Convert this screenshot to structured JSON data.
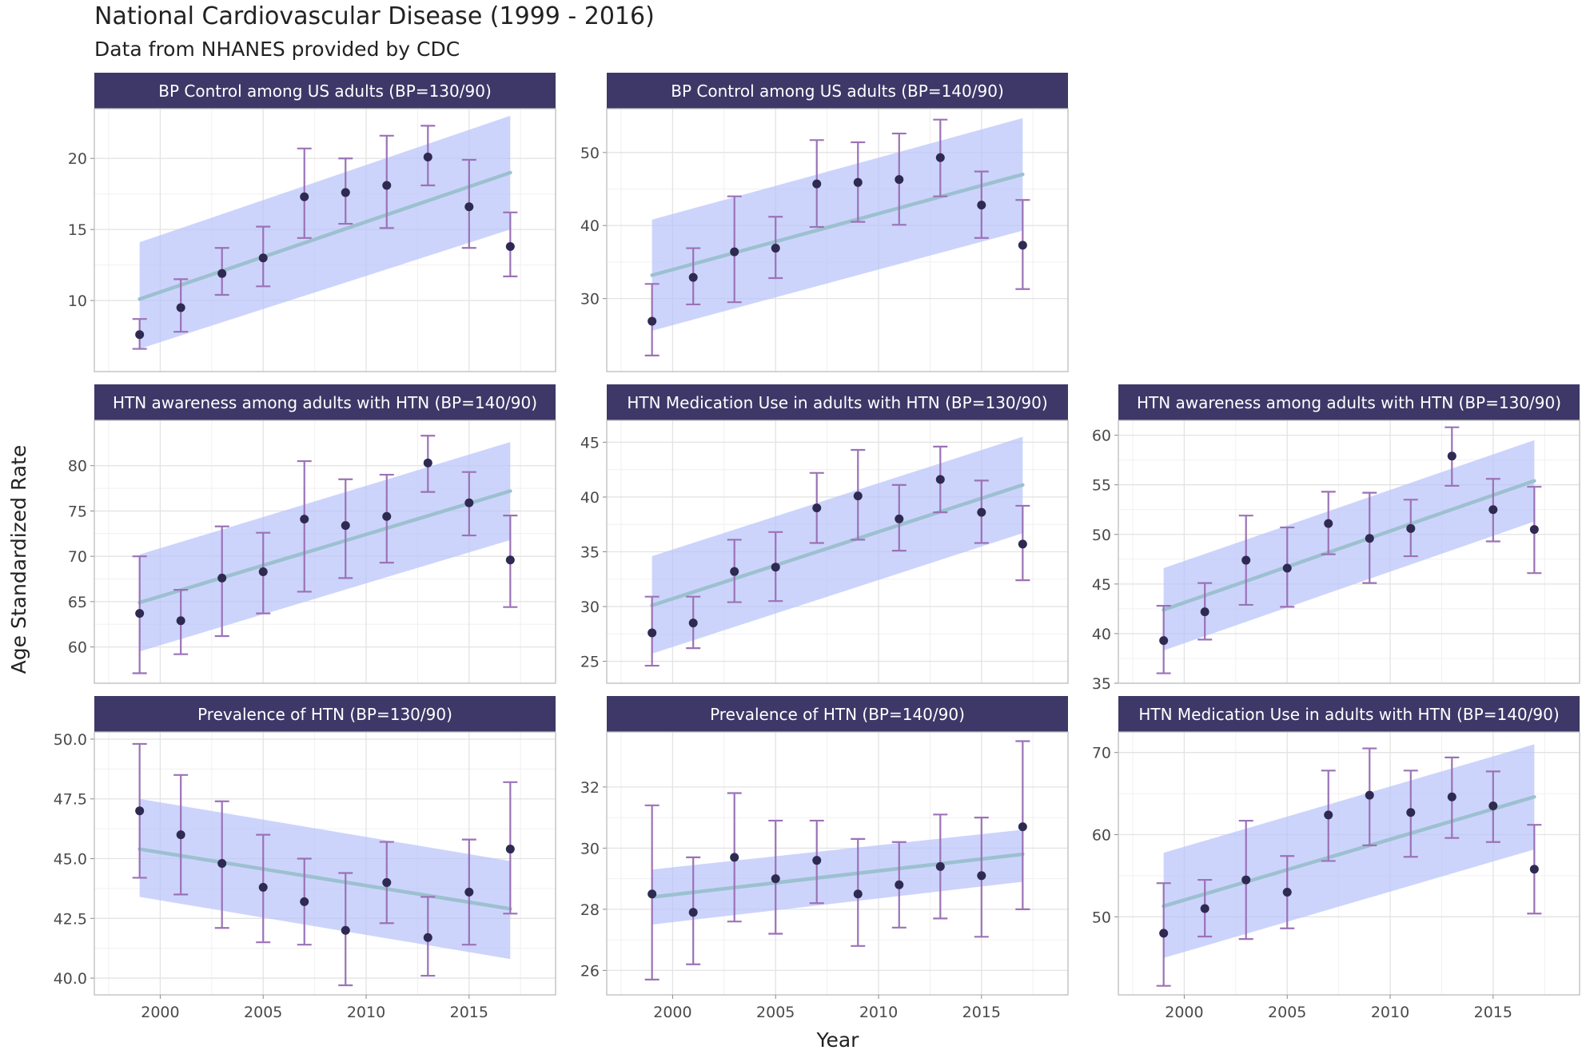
{
  "title": "National Cardiovascular Disease (1999 - 2016)",
  "subtitle": "Data from NHANES provided by CDC",
  "colors": {
    "strip": "#3e3868",
    "ribbon": "#b8c4fb",
    "fit_line": "#9cc0cf",
    "errorbar": "#9b72b6",
    "point": "#2e2a52",
    "grid": "#e3e3e3",
    "panel_border": "#bdbdbd"
  },
  "chart_data": {
    "type": "scatter",
    "xlabel": "Year",
    "ylabel": "Age Standardized Rate",
    "x": [
      1999,
      2001,
      2003,
      2005,
      2007,
      2009,
      2011,
      2013,
      2015,
      2017
    ],
    "xlim": [
      1996.8,
      2019.2
    ],
    "x_ticks": [
      2000,
      2005,
      2010,
      2015
    ],
    "panels": [
      {
        "title": "BP Control among US adults (BP=130/90)",
        "ylim": [
          5,
          23.5
        ],
        "yticks": [
          10,
          15,
          20
        ],
        "y": [
          7.6,
          9.5,
          11.9,
          13.0,
          17.3,
          17.6,
          18.1,
          20.1,
          16.6,
          13.8
        ],
        "lower": [
          6.6,
          7.8,
          10.4,
          11.0,
          14.4,
          15.4,
          15.1,
          18.1,
          13.7,
          11.7
        ],
        "upper": [
          8.7,
          11.5,
          13.7,
          15.2,
          20.7,
          20.0,
          21.6,
          22.3,
          19.9,
          16.2
        ],
        "fit": [
          10.1,
          19.0
        ],
        "band_lower": [
          6.6,
          15.0
        ],
        "band_upper": [
          14.1,
          23.0
        ]
      },
      {
        "title": "BP Control among US adults (BP=140/90)",
        "ylim": [
          20,
          56
        ],
        "yticks": [
          30,
          40,
          50
        ],
        "y": [
          26.9,
          32.9,
          36.4,
          36.9,
          45.7,
          45.9,
          46.3,
          49.3,
          42.8,
          37.3
        ],
        "lower": [
          22.2,
          29.2,
          29.5,
          32.8,
          39.8,
          40.5,
          40.1,
          44.0,
          38.3,
          31.3
        ],
        "upper": [
          32.0,
          36.9,
          44.0,
          41.2,
          51.7,
          51.4,
          52.6,
          54.5,
          47.4,
          43.5
        ],
        "fit": [
          33.2,
          47.0
        ],
        "band_lower": [
          25.6,
          39.3
        ],
        "band_upper": [
          40.8,
          54.7
        ]
      },
      {
        "title": "HTN awareness among adults with HTN (BP=130/90)",
        "ylim": [
          35,
          61.5
        ],
        "yticks": [
          35,
          40,
          45,
          50,
          55,
          60
        ],
        "y": [
          39.3,
          42.2,
          47.4,
          46.6,
          51.1,
          49.6,
          50.6,
          57.9,
          52.5,
          50.5
        ],
        "lower": [
          36.0,
          39.4,
          42.9,
          42.7,
          48.0,
          45.1,
          47.8,
          54.9,
          49.3,
          46.1
        ],
        "upper": [
          42.8,
          45.1,
          51.9,
          50.7,
          54.3,
          54.2,
          53.5,
          60.8,
          55.6,
          54.8
        ],
        "fit": [
          42.4,
          55.4
        ],
        "band_lower": [
          38.3,
          51.3
        ],
        "band_upper": [
          46.6,
          59.5
        ]
      },
      {
        "title": "HTN awareness among adults with HTN (BP=140/90)",
        "ylim": [
          56,
          85
        ],
        "yticks": [
          60,
          65,
          70,
          75,
          80
        ],
        "y": [
          63.7,
          62.9,
          67.6,
          68.3,
          74.1,
          73.4,
          74.4,
          80.3,
          75.9,
          69.6
        ],
        "lower": [
          57.1,
          59.2,
          61.2,
          63.7,
          66.1,
          67.6,
          69.3,
          77.1,
          72.3,
          64.4
        ],
        "upper": [
          70.0,
          66.3,
          73.3,
          72.6,
          80.5,
          78.5,
          79.0,
          83.3,
          79.3,
          74.5
        ],
        "fit": [
          64.9,
          77.2
        ],
        "band_lower": [
          59.5,
          71.8
        ],
        "band_upper": [
          70.2,
          82.6
        ]
      },
      {
        "title": "HTN Medication Use in adults with HTN (BP=130/90)",
        "ylim": [
          23,
          47
        ],
        "yticks": [
          25,
          30,
          35,
          40,
          45
        ],
        "y": [
          27.6,
          28.5,
          33.2,
          33.6,
          39.0,
          40.1,
          38.0,
          41.6,
          38.6,
          35.7
        ],
        "lower": [
          24.6,
          26.2,
          30.4,
          30.5,
          35.8,
          36.1,
          35.1,
          38.6,
          35.8,
          32.4
        ],
        "upper": [
          30.9,
          30.9,
          36.1,
          36.8,
          42.2,
          44.3,
          41.1,
          44.6,
          41.5,
          39.2
        ],
        "fit": [
          30.1,
          41.1
        ],
        "band_lower": [
          25.7,
          36.7
        ],
        "band_upper": [
          34.6,
          45.5
        ]
      },
      {
        "title": "HTN Medication Use in adults with HTN (BP=140/90)",
        "ylim": [
          40.5,
          72.5
        ],
        "yticks": [
          50,
          60,
          70
        ],
        "y": [
          48.0,
          51.0,
          54.5,
          53.0,
          62.4,
          64.8,
          62.7,
          64.6,
          63.5,
          55.8
        ],
        "lower": [
          41.6,
          47.6,
          47.3,
          48.6,
          56.8,
          58.7,
          57.3,
          59.6,
          59.1,
          50.4
        ],
        "upper": [
          54.1,
          54.5,
          61.7,
          57.4,
          67.8,
          70.5,
          67.8,
          69.4,
          67.7,
          61.2
        ],
        "fit": [
          51.3,
          64.6
        ],
        "band_lower": [
          45.0,
          58.2
        ],
        "band_upper": [
          57.8,
          71.0
        ]
      },
      {
        "title": "Prevalence of HTN (BP=130/90)",
        "ylim": [
          39.3,
          50.3
        ],
        "yticks": [
          40.0,
          42.5,
          45.0,
          47.5,
          50.0
        ],
        "ytick_labels": [
          "40.0",
          "42.5",
          "45.0",
          "47.5",
          "50.0"
        ],
        "y": [
          47.0,
          46.0,
          44.8,
          43.8,
          43.2,
          42.0,
          44.0,
          41.7,
          43.6,
          45.4
        ],
        "lower": [
          44.2,
          43.5,
          42.1,
          41.5,
          41.4,
          39.7,
          42.3,
          40.1,
          41.4,
          42.7
        ],
        "upper": [
          49.8,
          48.5,
          47.4,
          46.0,
          45.0,
          44.4,
          45.7,
          43.4,
          45.8,
          48.2
        ],
        "fit": [
          45.4,
          42.9
        ],
        "band_lower": [
          43.4,
          40.8
        ],
        "band_upper": [
          47.5,
          44.9
        ]
      },
      {
        "title": "Prevalence of HTN (BP=140/90)",
        "ylim": [
          25.2,
          33.8
        ],
        "yticks": [
          26,
          28,
          30,
          32
        ],
        "y": [
          28.5,
          27.9,
          29.7,
          29.0,
          29.6,
          28.5,
          28.8,
          29.4,
          29.1,
          30.7
        ],
        "lower": [
          25.7,
          26.2,
          27.6,
          27.2,
          28.2,
          26.8,
          27.4,
          27.7,
          27.1,
          28.0
        ],
        "upper": [
          31.4,
          29.7,
          31.8,
          30.9,
          30.9,
          30.3,
          30.2,
          31.1,
          31.0,
          33.5
        ],
        "fit": [
          28.4,
          29.8
        ],
        "band_lower": [
          27.5,
          28.9
        ],
        "band_upper": [
          29.3,
          30.6
        ]
      }
    ]
  }
}
